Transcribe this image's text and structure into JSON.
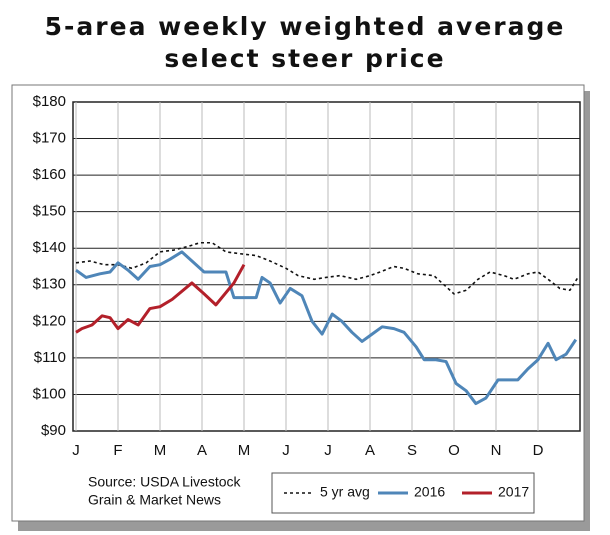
{
  "chart_data": {
    "type": "line",
    "title": [
      "5-area weekly weighted average",
      "select steer price"
    ],
    "source": [
      "Source: USDA Livestock",
      "Grain & Market News"
    ],
    "xlim": [
      0,
      12
    ],
    "xticks": [
      {
        "value": 0,
        "label": "J"
      },
      {
        "value": 1,
        "label": "F"
      },
      {
        "value": 2,
        "label": "M"
      },
      {
        "value": 3,
        "label": "A"
      },
      {
        "value": 4,
        "label": "M"
      },
      {
        "value": 5,
        "label": "J"
      },
      {
        "value": 6,
        "label": "J"
      },
      {
        "value": 7,
        "label": "A"
      },
      {
        "value": 8,
        "label": "S"
      },
      {
        "value": 9,
        "label": "O"
      },
      {
        "value": 10,
        "label": "N"
      },
      {
        "value": 11,
        "label": "D"
      }
    ],
    "ylim": [
      90,
      180
    ],
    "yticks": [
      {
        "value": 90,
        "label": "$90"
      },
      {
        "value": 100,
        "label": "$100"
      },
      {
        "value": 110,
        "label": "$110"
      },
      {
        "value": 120,
        "label": "$120"
      },
      {
        "value": 130,
        "label": "$130"
      },
      {
        "value": 140,
        "label": "$140"
      },
      {
        "value": 150,
        "label": "$150"
      },
      {
        "value": 160,
        "label": "$160"
      },
      {
        "value": 170,
        "label": "$170"
      },
      {
        "value": 180,
        "label": "$180"
      }
    ],
    "grid": true,
    "series": [
      {
        "name": "5 yr avg",
        "color": "#111111",
        "style": "dotted",
        "x": [
          0,
          0.33,
          0.67,
          1,
          1.33,
          1.67,
          2,
          2.33,
          2.67,
          2.95,
          3.24,
          3.57,
          3.9,
          4.29,
          4.62,
          5,
          5.29,
          5.67,
          5.95,
          6.29,
          6.67,
          7,
          7.24,
          7.57,
          7.81,
          8.14,
          8.52,
          8.81,
          9,
          9.29,
          9.57,
          9.86,
          10.19,
          10.43,
          10.76,
          11,
          11.24,
          11.52,
          11.76,
          11.95
        ],
        "values": [
          136,
          136.5,
          135.5,
          135.5,
          134.5,
          136,
          139,
          139.5,
          140.5,
          141.5,
          141.5,
          139,
          138.5,
          138,
          136.5,
          134.5,
          132.5,
          131.5,
          132,
          132.5,
          131.5,
          132.5,
          133.5,
          135,
          134.5,
          133,
          132.5,
          129.5,
          127.5,
          128.5,
          131.5,
          133.5,
          132.5,
          131.5,
          133,
          133.5,
          131.5,
          129,
          128.5,
          132
        ]
      },
      {
        "name": "2016",
        "color": "#4f86b8",
        "style": "solid",
        "x": [
          0,
          0.24,
          0.57,
          0.81,
          1,
          1.24,
          1.48,
          1.76,
          2,
          2.24,
          2.52,
          2.81,
          3.05,
          3.29,
          3.57,
          3.76,
          4.05,
          4.29,
          4.43,
          4.62,
          4.86,
          5.1,
          5.38,
          5.62,
          5.86,
          6.1,
          6.33,
          6.57,
          6.81,
          7.05,
          7.29,
          7.57,
          7.81,
          8.1,
          8.29,
          8.57,
          8.81,
          9.05,
          9.29,
          9.52,
          9.76,
          10.05,
          10.29,
          10.52,
          10.76,
          11,
          11.24,
          11.43,
          11.67,
          11.9
        ],
        "values": [
          134,
          132,
          133,
          133.5,
          136,
          134,
          131.5,
          135,
          135.5,
          137,
          139,
          136,
          133.5,
          133.5,
          133.5,
          126.5,
          126.5,
          126.5,
          132,
          130.5,
          125,
          129,
          127,
          120,
          116.5,
          122,
          120,
          117,
          114.5,
          116.5,
          118.5,
          118,
          117,
          113,
          109.5,
          109.5,
          109,
          103,
          101,
          97.5,
          99,
          104,
          104,
          104,
          107,
          109.5,
          114,
          109.5,
          111,
          115
        ]
      },
      {
        "name": "2017",
        "color": "#b3202a",
        "style": "solid",
        "x": [
          0,
          0.14,
          0.38,
          0.62,
          0.81,
          1,
          1.24,
          1.48,
          1.76,
          2,
          2.29,
          2.76,
          3.05,
          3.33,
          3.76,
          4
        ],
        "values": [
          117,
          118,
          119,
          121.5,
          121,
          118,
          120.5,
          119,
          123.5,
          124,
          126,
          130.5,
          127.5,
          124.5,
          130.5,
          135.5
        ]
      }
    ]
  }
}
